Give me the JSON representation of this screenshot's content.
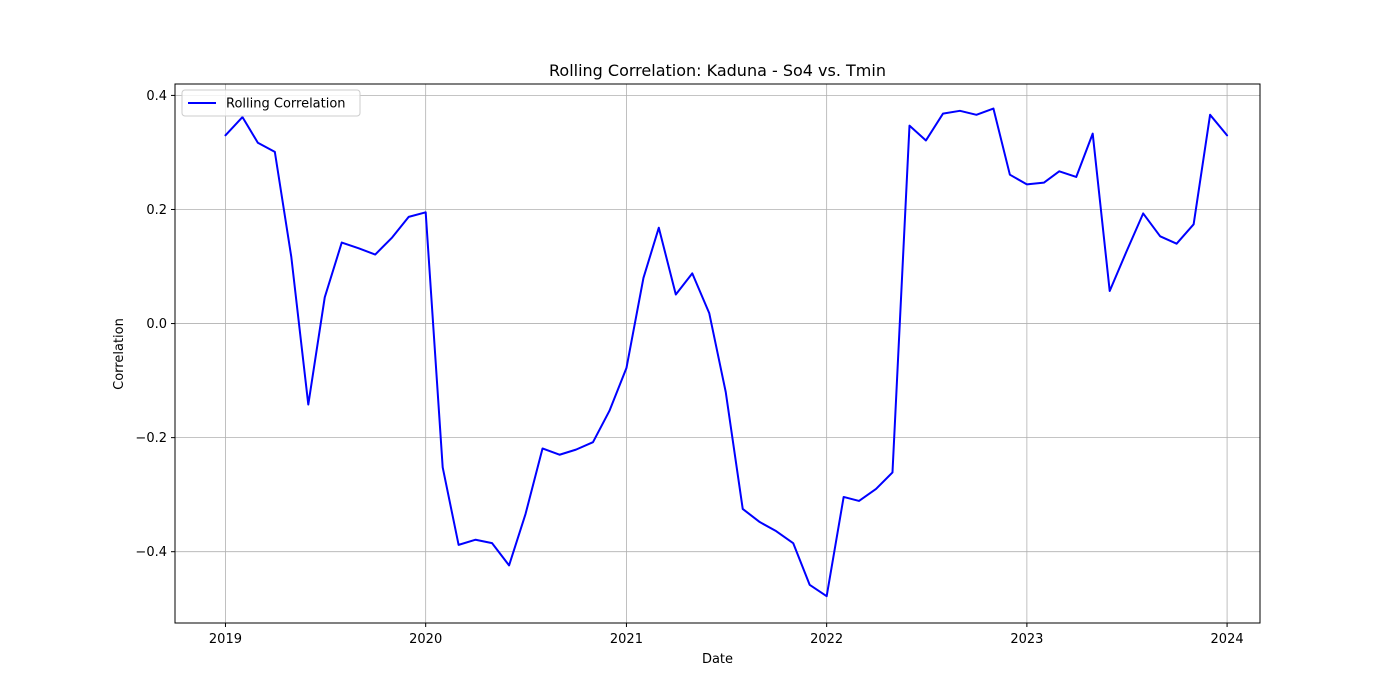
{
  "chart_data": {
    "type": "line",
    "title": "Rolling Correlation: Kaduna - So4 vs. Tmin",
    "xlabel": "Date",
    "ylabel": "Correlation",
    "x_range": [
      "2018-10-01",
      "2024-03-01"
    ],
    "ylim": [
      -0.525,
      0.42
    ],
    "x_ticks": [
      {
        "date": "2019-01-01",
        "label": "2019"
      },
      {
        "date": "2020-01-01",
        "label": "2020"
      },
      {
        "date": "2021-01-01",
        "label": "2021"
      },
      {
        "date": "2022-01-01",
        "label": "2022"
      },
      {
        "date": "2023-01-01",
        "label": "2023"
      },
      {
        "date": "2024-01-01",
        "label": "2024"
      }
    ],
    "y_ticks": [
      {
        "value": -0.4,
        "label": "−0.4"
      },
      {
        "value": -0.2,
        "label": "−0.2"
      },
      {
        "value": 0.0,
        "label": "0.0"
      },
      {
        "value": 0.2,
        "label": "0.2"
      },
      {
        "value": 0.4,
        "label": "0.4"
      }
    ],
    "grid": true,
    "legend_position": "top-left",
    "series": [
      {
        "name": "Rolling Correlation",
        "color": "#0000ff",
        "x": [
          "2019-01-01",
          "2019-02-01",
          "2019-03-01",
          "2019-04-01",
          "2019-05-01",
          "2019-06-01",
          "2019-07-01",
          "2019-08-01",
          "2019-09-01",
          "2019-10-01",
          "2019-11-01",
          "2019-12-01",
          "2020-01-01",
          "2020-02-01",
          "2020-03-01",
          "2020-04-01",
          "2020-05-01",
          "2020-06-01",
          "2020-07-01",
          "2020-08-01",
          "2020-09-01",
          "2020-10-01",
          "2020-11-01",
          "2020-12-01",
          "2021-01-01",
          "2021-02-01",
          "2021-03-01",
          "2021-04-01",
          "2021-05-01",
          "2021-06-01",
          "2021-07-01",
          "2021-08-01",
          "2021-09-01",
          "2021-10-01",
          "2021-11-01",
          "2021-12-01",
          "2022-01-01",
          "2022-02-01",
          "2022-03-01",
          "2022-04-01",
          "2022-05-01",
          "2022-06-01",
          "2022-07-01",
          "2022-08-01",
          "2022-09-01",
          "2022-10-01",
          "2022-11-01",
          "2022-12-01",
          "2023-01-01",
          "2023-02-01",
          "2023-03-01",
          "2023-04-01",
          "2023-05-01",
          "2023-06-01",
          "2023-07-01",
          "2023-08-01",
          "2023-09-01",
          "2023-10-01",
          "2023-11-01",
          "2023-12-01",
          "2024-01-01"
        ],
        "y": [
          0.33,
          0.362,
          0.317,
          0.301,
          0.117,
          -0.142,
          0.046,
          0.142,
          0.132,
          0.121,
          0.151,
          0.187,
          0.195,
          -0.252,
          -0.388,
          -0.379,
          -0.385,
          -0.424,
          -0.334,
          -0.219,
          -0.23,
          -0.221,
          -0.208,
          -0.153,
          -0.078,
          0.08,
          0.168,
          0.051,
          0.088,
          0.018,
          -0.12,
          -0.325,
          -0.348,
          -0.364,
          -0.385,
          -0.458,
          -0.478,
          -0.304,
          -0.311,
          -0.29,
          -0.261,
          0.347,
          0.321,
          0.368,
          0.373,
          0.366,
          0.377,
          0.261,
          0.244,
          0.247,
          0.267,
          0.257,
          0.333,
          0.057,
          0.125,
          0.193,
          0.153,
          0.14,
          0.174,
          0.366,
          0.33
        ]
      }
    ]
  }
}
